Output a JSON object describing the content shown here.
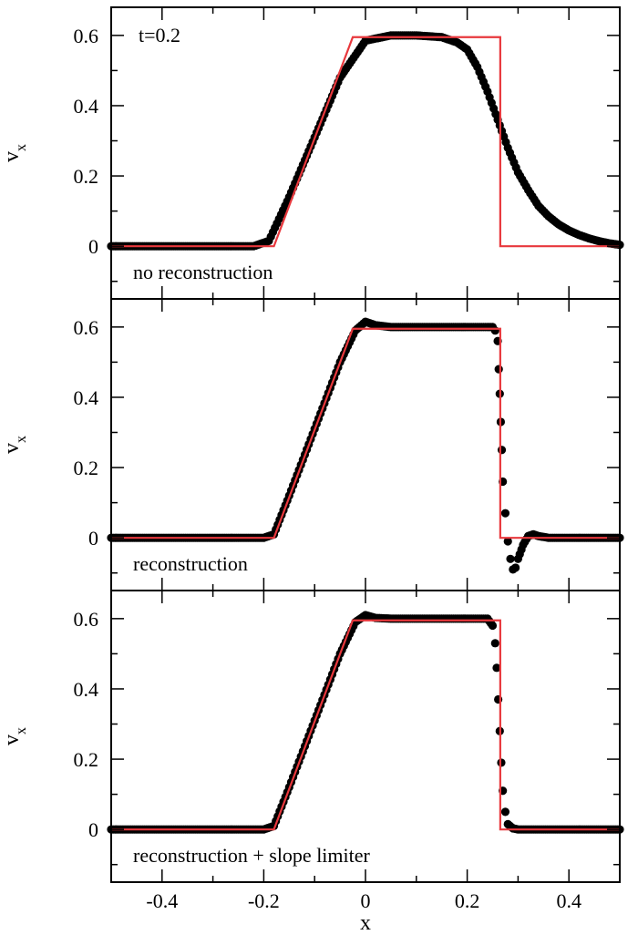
{
  "chart_data": [
    {
      "type": "scatter",
      "panel": "top",
      "annotation_top": "t=0.2",
      "annotation_bottom": "no reconstruction",
      "ylabel": "v",
      "ylabel_sub": "x",
      "xlim": [
        -0.5,
        0.5
      ],
      "ylim": [
        -0.15,
        0.68
      ],
      "yticks": [
        0,
        0.2,
        0.4,
        0.6
      ],
      "ytick_labels": [
        "0",
        "0.2",
        "0.4",
        "0.6"
      ],
      "exact_solution": {
        "x": [
          -0.5,
          -0.18,
          -0.025,
          0.265,
          0.265,
          0.5
        ],
        "y": [
          0,
          0,
          0.595,
          0.595,
          0,
          0
        ]
      },
      "numerical": {
        "x": [
          -0.5,
          -0.22,
          -0.19,
          -0.15,
          -0.1,
          -0.05,
          0,
          0.05,
          0.1,
          0.15,
          0.18,
          0.2,
          0.22,
          0.24,
          0.26,
          0.28,
          0.3,
          0.32,
          0.34,
          0.36,
          0.38,
          0.4,
          0.42,
          0.44,
          0.46,
          0.48,
          0.5
        ],
        "y": [
          0,
          0,
          0.015,
          0.14,
          0.31,
          0.48,
          0.585,
          0.6,
          0.6,
          0.595,
          0.58,
          0.56,
          0.51,
          0.44,
          0.36,
          0.28,
          0.21,
          0.16,
          0.115,
          0.085,
          0.062,
          0.045,
          0.032,
          0.022,
          0.014,
          0.008,
          0.004
        ]
      }
    },
    {
      "type": "scatter",
      "panel": "middle",
      "annotation_bottom": "reconstruction",
      "ylabel": "v",
      "ylabel_sub": "x",
      "xlim": [
        -0.5,
        0.5
      ],
      "ylim": [
        -0.15,
        0.68
      ],
      "yticks": [
        0,
        0.2,
        0.4,
        0.6
      ],
      "ytick_labels": [
        "0",
        "0.2",
        "0.4",
        "0.6"
      ],
      "exact_solution": {
        "x": [
          -0.5,
          -0.18,
          -0.025,
          0.265,
          0.265,
          0.5
        ],
        "y": [
          0,
          0,
          0.595,
          0.595,
          0,
          0
        ]
      },
      "numerical": {
        "x": [
          -0.5,
          -0.2,
          -0.18,
          -0.15,
          -0.1,
          -0.05,
          -0.02,
          0,
          0.02,
          0.05,
          0.1,
          0.15,
          0.2,
          0.24,
          0.25,
          0.255,
          0.26,
          0.262,
          0.264,
          0.266,
          0.268,
          0.27,
          0.275,
          0.28,
          0.285,
          0.29,
          0.295,
          0.3,
          0.31,
          0.32,
          0.33,
          0.34,
          0.36,
          0.4,
          0.45,
          0.5
        ],
        "y": [
          0,
          0,
          0.01,
          0.12,
          0.31,
          0.5,
          0.59,
          0.615,
          0.605,
          0.6,
          0.6,
          0.6,
          0.6,
          0.6,
          0.6,
          0.59,
          0.56,
          0.48,
          0.41,
          0.33,
          0.25,
          0.16,
          0.07,
          -0.01,
          -0.06,
          -0.09,
          -0.085,
          -0.06,
          -0.02,
          0.005,
          0.01,
          0.005,
          0,
          0,
          0,
          0
        ]
      }
    },
    {
      "type": "scatter",
      "panel": "bottom",
      "annotation_bottom": "reconstruction + slope limiter",
      "ylabel": "v",
      "ylabel_sub": "x",
      "xlabel": "x",
      "xlim": [
        -0.5,
        0.5
      ],
      "ylim": [
        -0.15,
        0.68
      ],
      "xticks": [
        -0.4,
        -0.2,
        0,
        0.2,
        0.4
      ],
      "xtick_labels": [
        "-0.4",
        "-0.2",
        "0",
        "0.2",
        "0.4"
      ],
      "yticks": [
        0,
        0.2,
        0.4,
        0.6
      ],
      "ytick_labels": [
        "0",
        "0.2",
        "0.4",
        "0.6"
      ],
      "exact_solution": {
        "x": [
          -0.5,
          -0.18,
          -0.025,
          0.265,
          0.265,
          0.5
        ],
        "y": [
          0,
          0,
          0.595,
          0.595,
          0,
          0
        ]
      },
      "numerical": {
        "x": [
          -0.5,
          -0.2,
          -0.18,
          -0.15,
          -0.1,
          -0.05,
          -0.02,
          0,
          0.02,
          0.05,
          0.1,
          0.15,
          0.2,
          0.24,
          0.25,
          0.255,
          0.258,
          0.261,
          0.264,
          0.267,
          0.27,
          0.275,
          0.28,
          0.29,
          0.3,
          0.35,
          0.4,
          0.45,
          0.5
        ],
        "y": [
          0,
          0,
          0.01,
          0.12,
          0.31,
          0.5,
          0.59,
          0.61,
          0.602,
          0.6,
          0.6,
          0.6,
          0.6,
          0.6,
          0.58,
          0.53,
          0.46,
          0.37,
          0.28,
          0.19,
          0.11,
          0.05,
          0.015,
          0.003,
          0,
          0,
          0,
          0,
          0
        ]
      }
    }
  ]
}
